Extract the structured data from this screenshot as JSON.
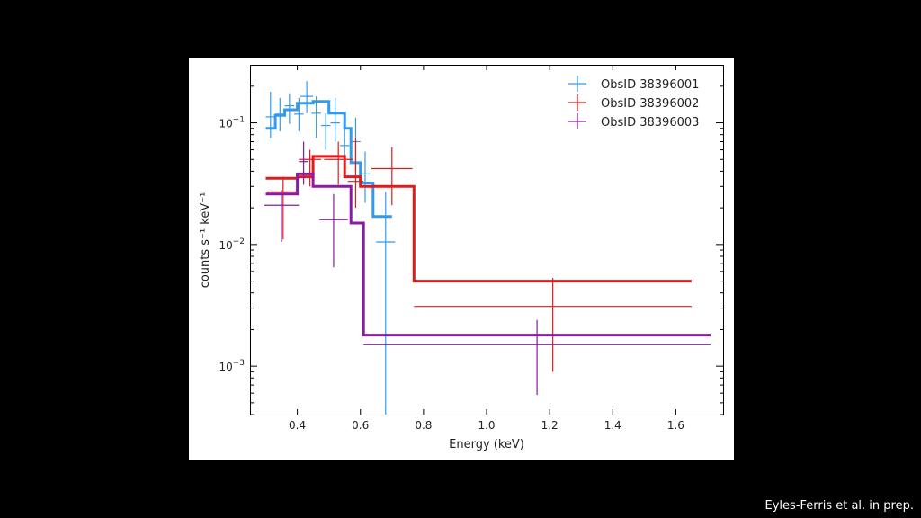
{
  "credit": "Eyles-Ferris et al. in prep.",
  "chart_data": {
    "type": "line",
    "title": "",
    "xlabel": "Energy (keV)",
    "ylabel": "counts s⁻¹ keV⁻¹",
    "xlim": [
      0.25,
      1.75
    ],
    "ylim": [
      0.0004,
      0.3
    ],
    "yscale": "log",
    "x_ticks": [
      "0.4",
      "0.6",
      "0.8",
      "1.0",
      "1.2",
      "1.4",
      "1.6"
    ],
    "y_ticks": [
      {
        "base": "10",
        "exp": "−1",
        "value": 0.1
      },
      {
        "base": "10",
        "exp": "−2",
        "value": 0.01
      },
      {
        "base": "10",
        "exp": "−3",
        "value": 0.001
      }
    ],
    "legend_position": "top-right",
    "series": [
      {
        "name": "ObsID 38396001",
        "color": "#3399ee",
        "model_x": [
          0.3,
          0.33,
          0.36,
          0.4,
          0.45,
          0.5,
          0.55,
          0.57,
          0.6,
          0.64,
          0.7
        ],
        "model_y": [
          0.09,
          0.115,
          0.128,
          0.145,
          0.15,
          0.12,
          0.09,
          0.047,
          0.032,
          0.017
        ],
        "points": [
          {
            "x": 0.315,
            "xerr": 0.015,
            "y": 0.112,
            "ylo": 0.075,
            "yhi": 0.18
          },
          {
            "x": 0.345,
            "xerr": 0.015,
            "y": 0.118,
            "ylo": 0.085,
            "yhi": 0.16
          },
          {
            "x": 0.375,
            "xerr": 0.015,
            "y": 0.138,
            "ylo": 0.098,
            "yhi": 0.175
          },
          {
            "x": 0.405,
            "xerr": 0.015,
            "y": 0.118,
            "ylo": 0.085,
            "yhi": 0.16
          },
          {
            "x": 0.43,
            "xerr": 0.02,
            "y": 0.165,
            "ylo": 0.12,
            "yhi": 0.22
          },
          {
            "x": 0.46,
            "xerr": 0.015,
            "y": 0.12,
            "ylo": 0.075,
            "yhi": 0.165
          },
          {
            "x": 0.49,
            "xerr": 0.015,
            "y": 0.095,
            "ylo": 0.06,
            "yhi": 0.12
          },
          {
            "x": 0.52,
            "xerr": 0.015,
            "y": 0.1,
            "ylo": 0.07,
            "yhi": 0.16
          },
          {
            "x": 0.55,
            "xerr": 0.015,
            "y": 0.065,
            "ylo": 0.04,
            "yhi": 0.1
          },
          {
            "x": 0.585,
            "xerr": 0.015,
            "y": 0.07,
            "ylo": 0.04,
            "yhi": 0.11
          },
          {
            "x": 0.615,
            "xerr": 0.015,
            "y": 0.038,
            "ylo": 0.022,
            "yhi": 0.058
          },
          {
            "x": 0.68,
            "xerr": 0.03,
            "y": 0.0105,
            "ylo": 0.0004,
            "yhi": 0.027
          }
        ]
      },
      {
        "name": "ObsID 38396002",
        "color": "#e01b1b",
        "model_x": [
          0.3,
          0.4,
          0.45,
          0.55,
          0.6,
          0.77,
          1.65
        ],
        "model_y": [
          0.035,
          0.036,
          0.053,
          0.036,
          0.03,
          0.005
        ],
        "points": [
          {
            "x": 0.355,
            "xerr": 0.05,
            "y": 0.027,
            "ylo": 0.011,
            "yhi": 0.036
          },
          {
            "x": 0.44,
            "xerr": 0.035,
            "y": 0.05,
            "ylo": 0.03,
            "yhi": 0.06
          },
          {
            "x": 0.53,
            "xerr": 0.045,
            "y": 0.05,
            "ylo": 0.031,
            "yhi": 0.07
          },
          {
            "x": 0.585,
            "xerr": 0.025,
            "y": 0.033,
            "ylo": 0.02,
            "yhi": 0.075
          },
          {
            "x": 0.7,
            "xerr": 0.065,
            "y": 0.042,
            "ylo": 0.021,
            "yhi": 0.063
          },
          {
            "x": 1.21,
            "xerr": 0.44,
            "y": 0.0031,
            "ylo": 0.0009,
            "yhi": 0.0053
          }
        ]
      },
      {
        "name": "ObsID 38396003",
        "color": "#8a1ba3",
        "model_x": [
          0.3,
          0.4,
          0.45,
          0.57,
          0.61,
          1.71
        ],
        "model_y": [
          0.026,
          0.038,
          0.03,
          0.015,
          0.0018
        ],
        "points": [
          {
            "x": 0.35,
            "xerr": 0.055,
            "y": 0.021,
            "ylo": 0.0105,
            "yhi": 0.028
          },
          {
            "x": 0.42,
            "xerr": 0.015,
            "y": 0.048,
            "ylo": 0.031,
            "yhi": 0.07
          },
          {
            "x": 0.515,
            "xerr": 0.045,
            "y": 0.016,
            "ylo": 0.0065,
            "yhi": 0.026
          },
          {
            "x": 1.16,
            "xerr": 0.55,
            "y": 0.0015,
            "ylo": 0.00058,
            "yhi": 0.0024
          }
        ]
      }
    ]
  }
}
